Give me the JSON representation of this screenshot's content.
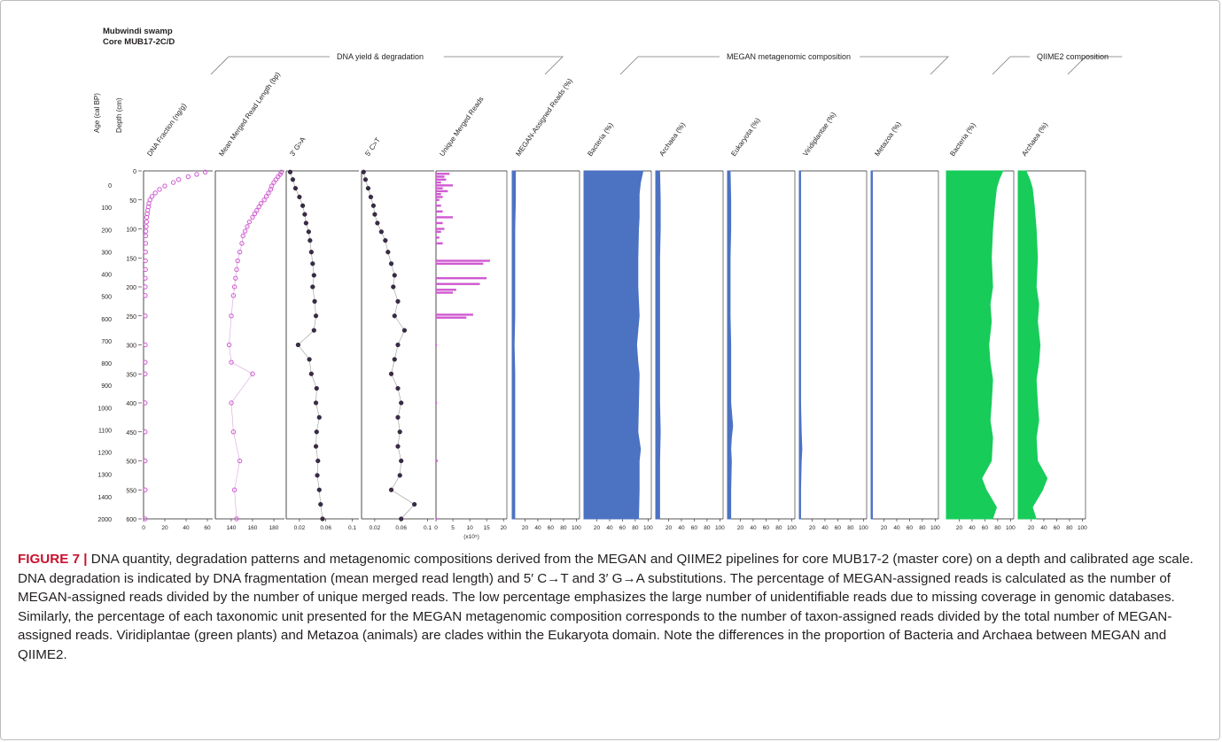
{
  "figure": {
    "site": "Mubwindi swamp",
    "core": "Core MUB17-2C/D",
    "group_labels": [
      "DNA yield & degradation",
      "MEGAN metagenomic composition",
      "QIIME2 composition"
    ],
    "age_axis_label": "Age (cal BP)",
    "depth_axis_label": "Depth (cm)",
    "age_ticks": [
      "0",
      "100",
      "200",
      "300",
      "400",
      "500",
      "600",
      "700",
      "800",
      "900",
      "1000",
      "1100",
      "1200",
      "1300",
      "1400",
      "2000"
    ],
    "depth_ticks": [
      "0",
      "50",
      "100",
      "150",
      "200",
      "250",
      "300",
      "350",
      "400",
      "450",
      "500",
      "550",
      "600"
    ],
    "unique_reads_unit": "(x10⁵)"
  },
  "chart_data": [
    {
      "type": "scatter",
      "title": "DNA Fraction (ng/g)",
      "xticks": [
        "0",
        "20",
        "40",
        "60"
      ],
      "xlim": [
        0,
        65
      ],
      "color": "#d05ad2",
      "marker": "open-circle",
      "connect": false,
      "depth": [
        2,
        6,
        10,
        15,
        20,
        26,
        32,
        38,
        44,
        50,
        56,
        62,
        68,
        74,
        80,
        88,
        96,
        104,
        112,
        125,
        140,
        155,
        170,
        185,
        200,
        215,
        250,
        300,
        330,
        350,
        400,
        450,
        500,
        550,
        600
      ],
      "values": [
        58,
        50,
        42,
        33,
        28,
        20,
        15,
        11,
        8,
        6,
        5,
        4.5,
        4,
        3.5,
        3,
        2.8,
        2.5,
        2.2,
        2,
        2,
        1.8,
        1.8,
        1.8,
        1.6,
        1.6,
        1.6,
        1.6,
        1.6,
        1.5,
        1.5,
        1.5,
        1.5,
        1.5,
        1.5,
        1.5
      ]
    },
    {
      "type": "scatter",
      "title": "Mean Merged Read Length (bp)",
      "xticks": [
        "140",
        "160",
        "180"
      ],
      "xlim": [
        125,
        190
      ],
      "color": "#d05ad2",
      "marker": "open-circle",
      "connect": true,
      "depth": [
        2,
        6,
        10,
        15,
        20,
        26,
        32,
        38,
        44,
        50,
        56,
        62,
        68,
        74,
        80,
        88,
        96,
        104,
        112,
        125,
        140,
        155,
        170,
        185,
        200,
        215,
        250,
        300,
        330,
        350,
        400,
        450,
        500,
        550,
        600
      ],
      "values": [
        187,
        186,
        184,
        182,
        180,
        178,
        177,
        175,
        173,
        171,
        168,
        166,
        164,
        162,
        160,
        157,
        155,
        153,
        151,
        150,
        148,
        146,
        145,
        144,
        143,
        142,
        140,
        138,
        140,
        160,
        140,
        142,
        148,
        143,
        145
      ]
    },
    {
      "type": "line",
      "title": "3′ G>A",
      "xticks": [
        "0.02",
        "0.06",
        "0.1"
      ],
      "xlim": [
        0,
        0.11
      ],
      "color": "#231f20",
      "marker": "filled-circle",
      "connect": true,
      "depth": [
        2,
        15,
        30,
        45,
        60,
        75,
        90,
        105,
        120,
        140,
        160,
        180,
        200,
        225,
        250,
        275,
        300,
        325,
        350,
        375,
        400,
        425,
        450,
        475,
        500,
        525,
        550,
        575,
        600
      ],
      "values": [
        0.006,
        0.01,
        0.014,
        0.02,
        0.025,
        0.028,
        0.03,
        0.034,
        0.036,
        0.038,
        0.04,
        0.042,
        0.04,
        0.043,
        0.045,
        0.042,
        0.018,
        0.035,
        0.038,
        0.046,
        0.045,
        0.05,
        0.046,
        0.045,
        0.048,
        0.047,
        0.05,
        0.052,
        0.055
      ]
    },
    {
      "type": "line",
      "title": "5′ C>T",
      "xticks": [
        "0.02",
        "0.06",
        "0.1"
      ],
      "xlim": [
        0,
        0.11
      ],
      "color": "#231f20",
      "marker": "filled-circle",
      "connect": true,
      "depth": [
        2,
        15,
        30,
        45,
        60,
        75,
        90,
        105,
        120,
        140,
        160,
        180,
        200,
        225,
        250,
        275,
        300,
        325,
        350,
        375,
        400,
        425,
        450,
        475,
        500,
        525,
        550,
        575,
        600
      ],
      "values": [
        0.003,
        0.006,
        0.01,
        0.014,
        0.018,
        0.02,
        0.024,
        0.03,
        0.036,
        0.04,
        0.045,
        0.05,
        0.048,
        0.055,
        0.05,
        0.065,
        0.055,
        0.05,
        0.045,
        0.055,
        0.06,
        0.055,
        0.058,
        0.055,
        0.06,
        0.058,
        0.045,
        0.08,
        0.06
      ]
    },
    {
      "type": "bar",
      "orientation": "horizontal",
      "title": "Unique Merged Reads",
      "xticks": [
        "0",
        "5",
        "10",
        "15",
        "20"
      ],
      "xlim": [
        0,
        21
      ],
      "color": "#d05ad2",
      "depth": [
        5,
        10,
        15,
        20,
        25,
        30,
        35,
        40,
        45,
        50,
        60,
        70,
        80,
        90,
        100,
        105,
        115,
        125,
        155,
        160,
        185,
        195,
        205,
        210,
        248,
        253,
        300,
        400,
        500,
        600
      ],
      "values": [
        4,
        2.5,
        3,
        1.5,
        5,
        2,
        3.5,
        1.5,
        2,
        1,
        1.5,
        2,
        5,
        2,
        2.5,
        1.5,
        1,
        2,
        16,
        14,
        15,
        13,
        6,
        5,
        11,
        9,
        0.3,
        0.3,
        0.5,
        0.3
      ]
    },
    {
      "type": "area",
      "title": "MEGAN-Assigned Reads (%)",
      "xticks": [
        "20",
        "40",
        "60",
        "80",
        "100"
      ],
      "xlim": [
        0,
        105
      ],
      "color": "#4c72c2",
      "depth": [
        0,
        50,
        100,
        150,
        200,
        250,
        300,
        350,
        400,
        450,
        500,
        550,
        600
      ],
      "values": [
        5,
        5,
        4,
        4,
        4,
        4,
        3,
        4,
        4,
        4,
        4,
        4,
        4
      ]
    },
    {
      "type": "area",
      "title": "Bacteria (%)",
      "xticks": [
        "20",
        "40",
        "60",
        "80",
        "100"
      ],
      "xlim": [
        0,
        105
      ],
      "color": "#4c72c2",
      "depth": [
        0,
        20,
        40,
        60,
        80,
        100,
        150,
        200,
        250,
        300,
        330,
        350,
        400,
        450,
        480,
        500,
        550,
        600
      ],
      "values": [
        92,
        88,
        86,
        86,
        86,
        85,
        84,
        84,
        86,
        82,
        84,
        86,
        85,
        84,
        88,
        86,
        86,
        85
      ]
    },
    {
      "type": "area",
      "title": "Archaea (%)",
      "xticks": [
        "20",
        "40",
        "60",
        "80",
        "100"
      ],
      "xlim": [
        0,
        105
      ],
      "color": "#4c72c2",
      "depth": [
        0,
        50,
        100,
        150,
        200,
        250,
        300,
        350,
        400,
        450,
        500,
        550,
        600
      ],
      "values": [
        6,
        7,
        7,
        6,
        6,
        6,
        6,
        6,
        6,
        7,
        6,
        6,
        6
      ]
    },
    {
      "type": "area",
      "title": "Eukaryota (%)",
      "xticks": [
        "20",
        "40",
        "60",
        "80",
        "100"
      ],
      "xlim": [
        0,
        105
      ],
      "color": "#4c72c2",
      "depth": [
        0,
        50,
        100,
        150,
        200,
        250,
        300,
        350,
        400,
        440,
        460,
        480,
        500,
        550,
        600
      ],
      "values": [
        4,
        5,
        5,
        4,
        4,
        4,
        5,
        5,
        5,
        8,
        6,
        5,
        6,
        5,
        5
      ]
    },
    {
      "type": "area",
      "title": "Viridiplantae (%)",
      "xticks": [
        "20",
        "40",
        "60",
        "80",
        "100"
      ],
      "xlim": [
        0,
        105
      ],
      "color": "#4c72c2",
      "depth": [
        0,
        50,
        100,
        150,
        200,
        250,
        300,
        350,
        400,
        450,
        480,
        500,
        550,
        600
      ],
      "values": [
        2,
        2,
        2,
        2,
        2,
        2,
        2,
        2,
        2,
        3,
        4,
        3,
        2,
        2
      ]
    },
    {
      "type": "area",
      "title": "Metazoa (%)",
      "xticks": [
        "20",
        "40",
        "60",
        "80",
        "100"
      ],
      "xlim": [
        0,
        105
      ],
      "color": "#4c72c2",
      "depth": [
        0,
        50,
        100,
        150,
        200,
        250,
        300,
        350,
        400,
        450,
        500,
        550,
        600
      ],
      "values": [
        2,
        2,
        2,
        2,
        2,
        2,
        2,
        2,
        2,
        2,
        2,
        2,
        2
      ]
    },
    {
      "type": "area",
      "title": "Bacteria (%)",
      "xticks": [
        "20",
        "40",
        "60",
        "80",
        "100"
      ],
      "xlim": [
        0,
        105
      ],
      "color": "#18cc5a",
      "depth": [
        0,
        15,
        30,
        60,
        100,
        150,
        200,
        230,
        260,
        300,
        330,
        360,
        400,
        430,
        460,
        500,
        530,
        550,
        580,
        600
      ],
      "values": [
        88,
        82,
        78,
        75,
        72,
        70,
        72,
        68,
        70,
        66,
        68,
        72,
        70,
        68,
        72,
        70,
        55,
        62,
        78,
        72
      ]
    },
    {
      "type": "area",
      "title": "Archaea (%)",
      "xticks": [
        "20",
        "40",
        "60",
        "80",
        "100"
      ],
      "xlim": [
        0,
        105
      ],
      "color": "#18cc5a",
      "depth": [
        0,
        15,
        30,
        60,
        100,
        150,
        200,
        230,
        260,
        300,
        330,
        360,
        400,
        430,
        460,
        500,
        530,
        550,
        580,
        600
      ],
      "values": [
        12,
        18,
        22,
        25,
        28,
        30,
        28,
        32,
        30,
        34,
        32,
        28,
        30,
        32,
        28,
        30,
        45,
        38,
        22,
        28
      ]
    }
  ],
  "caption": {
    "label": "FIGURE 7 |",
    "text": " DNA quantity, degradation patterns and metagenomic compositions derived from the MEGAN and QIIME2 pipelines for core MUB17-2 (master core) on a depth and calibrated age scale. DNA degradation is indicated by DNA fragmentation (mean merged read length) and 5′ C→T and 3′ G→A substitutions. The percentage of MEGAN-assigned reads is calculated as the number of MEGAN-assigned reads divided by the number of unique merged reads. The low percentage emphasizes the large number of unidentifiable reads due to missing coverage in genomic databases. Similarly, the percentage of each taxonomic unit presented for the MEGAN metagenomic composition corresponds to the number of taxon-assigned reads divided by the total number of MEGAN-assigned reads. Viridiplantae (green plants) and Metazoa (animals) are clades within the Eukaryota domain. Note the differences in the proportion of Bacteria and Archaea between MEGAN and QIIME2."
  }
}
